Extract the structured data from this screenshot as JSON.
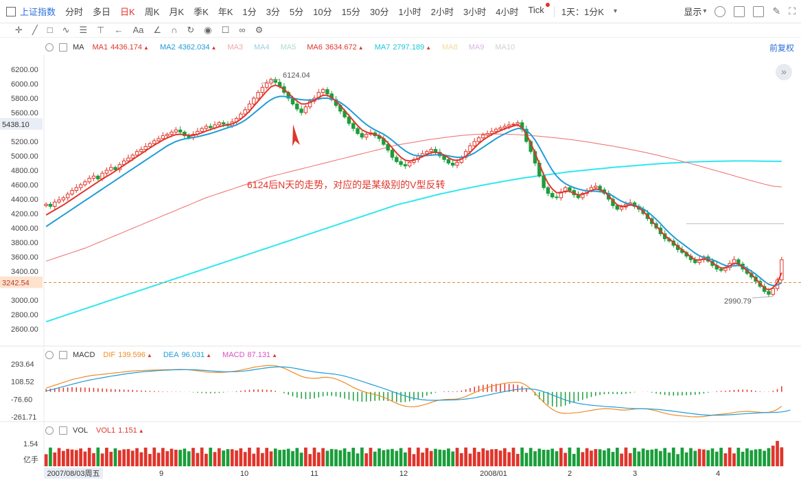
{
  "toolbar": {
    "symbol": "上证指数",
    "timeframes": [
      "分时",
      "多日",
      "日K",
      "周K",
      "月K",
      "季K",
      "年K",
      "1分",
      "3分",
      "5分",
      "10分",
      "15分",
      "30分",
      "1小时",
      "2小时",
      "3小时",
      "4小时",
      "Tick"
    ],
    "active_timeframe": "日K",
    "period_select": "1天：1分K",
    "display_label": "显示"
  },
  "ma_bar": {
    "name": "MA",
    "items": [
      {
        "label": "MA1",
        "value": "4436.174",
        "color": "#e0352b",
        "on": true
      },
      {
        "label": "MA2",
        "value": "4362.034",
        "color": "#1f9bd7",
        "on": true
      },
      {
        "label": "MA3",
        "value": "",
        "color": "#f4a6a6",
        "on": false
      },
      {
        "label": "MA4",
        "value": "",
        "color": "#9ccfe6",
        "on": false
      },
      {
        "label": "MA5",
        "value": "",
        "color": "#a9dcc6",
        "on": false
      },
      {
        "label": "MA6",
        "value": "3634.672",
        "color": "#e0352b",
        "on": true
      },
      {
        "label": "MA7",
        "value": "2797.189",
        "color": "#18c8d8",
        "on": true
      },
      {
        "label": "MA8",
        "value": "",
        "color": "#f2d9a0",
        "on": false
      },
      {
        "label": "MA9",
        "value": "",
        "color": "#d9b6e2",
        "on": false
      },
      {
        "label": "MA10",
        "value": "",
        "color": "#cfcfcf",
        "on": false
      }
    ],
    "adjust": "前复权"
  },
  "macd_bar": {
    "name": "MACD",
    "items": [
      {
        "label": "DIF",
        "value": "139.596",
        "color": "#f08a24"
      },
      {
        "label": "DEA",
        "value": "96.031",
        "color": "#1f9bd7"
      },
      {
        "label": "MACD",
        "value": "87.131",
        "color": "#d94fc0"
      }
    ]
  },
  "vol_bar": {
    "name": "VOL",
    "items": [
      {
        "label": "VOL1",
        "value": "1.151",
        "color": "#e0352b"
      }
    ]
  },
  "chart_data": {
    "type": "candlestick",
    "price_axis": {
      "ticks": [
        6200,
        6000,
        5800,
        5600,
        5200,
        5000,
        4800,
        4600,
        4400,
        4200,
        4000,
        3800,
        3600,
        3400,
        3000,
        2800,
        2600
      ],
      "labels": [
        "6200.00",
        "6000.00",
        "5800.00",
        "5600.00",
        "5200.00",
        "5000.00",
        "4800.00",
        "4600.00",
        "4400.00",
        "4200.00",
        "4000.00",
        "3800.00",
        "3600.00",
        "3400.00",
        "3000.00",
        "2800.00",
        "2600.00"
      ],
      "ylim": [
        2400,
        6400
      ]
    },
    "highlight_price": "5438.10",
    "current_price": "3242.54",
    "high_marker": "6124.04",
    "low_marker": "2990.79",
    "annotation": "6124后N天的走势，对应的是某级别的V型反转",
    "macd_axis": {
      "labels": [
        "293.64",
        "108.52",
        "-76.60",
        "-261.71"
      ],
      "values": [
        293.64,
        108.52,
        -76.6,
        -261.71
      ]
    },
    "vol_axis": {
      "labels": [
        "1.54",
        "亿手"
      ]
    },
    "time_axis": {
      "labels": [
        "2007/08/03周五",
        "9",
        "10",
        "11",
        "12",
        "2008/01",
        "2",
        "3",
        "4"
      ]
    },
    "close": [
      4330,
      4300,
      4360,
      4390,
      4420,
      4470,
      4520,
      4560,
      4600,
      4640,
      4690,
      4720,
      4680,
      4760,
      4800,
      4840,
      4810,
      4880,
      4930,
      4970,
      5010,
      5060,
      5090,
      5130,
      5170,
      5210,
      5240,
      5280,
      5300,
      5330,
      5360,
      5330,
      5280,
      5250,
      5300,
      5340,
      5380,
      5410,
      5390,
      5430,
      5460,
      5440,
      5420,
      5470,
      5520,
      5580,
      5640,
      5720,
      5800,
      5880,
      5950,
      6010,
      6060,
      6020,
      5960,
      5880,
      5800,
      5720,
      5650,
      5600,
      5680,
      5760,
      5800,
      5880,
      5920,
      5860,
      5780,
      5700,
      5620,
      5540,
      5450,
      5380,
      5310,
      5260,
      5300,
      5320,
      5280,
      5240,
      5160,
      5080,
      4980,
      4920,
      4880,
      4860,
      4910,
      4950,
      5000,
      5030,
      5060,
      5090,
      5050,
      5000,
      4950,
      4900,
      4870,
      4910,
      4980,
      5060,
      5140,
      5200,
      5250,
      5290,
      5310,
      5340,
      5370,
      5390,
      5410,
      5430,
      5440,
      5460,
      5370,
      5200,
      5060,
      4900,
      4720,
      4560,
      4480,
      4430,
      4420,
      4500,
      4560,
      4520,
      4460,
      4420,
      4480,
      4520,
      4560,
      4580,
      4530,
      4480,
      4400,
      4310,
      4260,
      4290,
      4330,
      4350,
      4300,
      4260,
      4200,
      4130,
      4060,
      4000,
      3920,
      3850,
      3820,
      3760,
      3700,
      3660,
      3610,
      3560,
      3520,
      3560,
      3600,
      3540,
      3480,
      3430,
      3410,
      3450,
      3510,
      3560,
      3500,
      3430,
      3370,
      3320,
      3260,
      3190,
      3120,
      3080,
      3160,
      3280,
      3560
    ],
    "ma1": [
      4180,
      4215,
      4250,
      4285,
      4320,
      4360,
      4400,
      4440,
      4480,
      4520,
      4560,
      4600,
      4640,
      4680,
      4715,
      4750,
      4790,
      4830,
      4870,
      4910,
      4950,
      4990,
      5030,
      5070,
      5110,
      5150,
      5185,
      5220,
      5250,
      5275,
      5295,
      5300,
      5295,
      5285,
      5285,
      5300,
      5320,
      5345,
      5365,
      5385,
      5405,
      5420,
      5430,
      5445,
      5470,
      5510,
      5560,
      5620,
      5690,
      5760,
      5830,
      5900,
      5960,
      5980,
      5960,
      5920,
      5870,
      5810,
      5760,
      5720,
      5720,
      5740,
      5770,
      5810,
      5840,
      5840,
      5810,
      5760,
      5700,
      5630,
      5560,
      5490,
      5420,
      5360,
      5330,
      5310,
      5300,
      5280,
      5240,
      5180,
      5110,
      5040,
      4980,
      4940,
      4930,
      4940,
      4965,
      4990,
      5020,
      5045,
      5050,
      5040,
      5010,
      4975,
      4945,
      4935,
      4955,
      4995,
      5050,
      5110,
      5170,
      5220,
      5260,
      5295,
      5325,
      5350,
      5375,
      5395,
      5415,
      5430,
      5390,
      5300,
      5180,
      5040,
      4890,
      4740,
      4620,
      4540,
      4490,
      4490,
      4510,
      4510,
      4480,
      4460,
      4465,
      4490,
      4520,
      4540,
      4530,
      4500,
      4450,
      4380,
      4320,
      4300,
      4305,
      4320,
      4310,
      4280,
      4230,
      4170,
      4100,
      4030,
      3960,
      3895,
      3850,
      3800,
      3745,
      3700,
      3650,
      3600,
      3560,
      3555,
      3570,
      3560,
      3520,
      3475,
      3445,
      3445,
      3475,
      3510,
      3500,
      3460,
      3410,
      3360,
      3300,
      3230,
      3170,
      3140,
      3170,
      3240,
      3380
    ],
    "ma2": [
      4020,
      4060,
      4100,
      4140,
      4180,
      4220,
      4260,
      4300,
      4340,
      4380,
      4420,
      4460,
      4500,
      4540,
      4580,
      4620,
      4660,
      4700,
      4740,
      4780,
      4820,
      4860,
      4900,
      4940,
      4980,
      5020,
      5060,
      5100,
      5140,
      5170,
      5200,
      5220,
      5235,
      5245,
      5255,
      5265,
      5280,
      5295,
      5310,
      5330,
      5350,
      5370,
      5390,
      5410,
      5430,
      5460,
      5495,
      5540,
      5590,
      5640,
      5690,
      5740,
      5780,
      5810,
      5825,
      5825,
      5815,
      5800,
      5790,
      5780,
      5775,
      5775,
      5780,
      5790,
      5800,
      5800,
      5790,
      5770,
      5740,
      5700,
      5650,
      5595,
      5540,
      5485,
      5435,
      5395,
      5360,
      5330,
      5300,
      5260,
      5215,
      5165,
      5115,
      5070,
      5035,
      5010,
      5000,
      5000,
      5005,
      5010,
      5015,
      5015,
      5010,
      5000,
      4990,
      4980,
      4980,
      4990,
      5010,
      5040,
      5080,
      5120,
      5160,
      5200,
      5240,
      5275,
      5305,
      5335,
      5360,
      5380,
      5380,
      5355,
      5300,
      5220,
      5120,
      5010,
      4900,
      4800,
      4720,
      4660,
      4615,
      4585,
      4560,
      4540,
      4525,
      4515,
      4510,
      4510,
      4505,
      4495,
      4475,
      4445,
      4405,
      4370,
      4345,
      4330,
      4315,
      4295,
      4265,
      4225,
      4175,
      4120,
      4060,
      3995,
      3935,
      3880,
      3830,
      3785,
      3740,
      3695,
      3650,
      3615,
      3590,
      3575,
      3560,
      3535,
      3505,
      3480,
      3470,
      3475,
      3480,
      3470,
      3440,
      3400,
      3360,
      3310,
      3260,
      3220,
      3200,
      3210,
      3240
    ],
    "ma6": [
      3540,
      3560,
      3580,
      3600,
      3620,
      3640,
      3660,
      3680,
      3700,
      3720,
      3745,
      3770,
      3795,
      3820,
      3845,
      3870,
      3895,
      3920,
      3945,
      3970,
      3995,
      4020,
      4045,
      4070,
      4095,
      4120,
      4145,
      4170,
      4195,
      4220,
      4245,
      4270,
      4295,
      4320,
      4345,
      4370,
      4395,
      4420,
      4440,
      4460,
      4480,
      4500,
      4520,
      4540,
      4560,
      4580,
      4600,
      4620,
      4640,
      4660,
      4680,
      4700,
      4715,
      4730,
      4745,
      4760,
      4775,
      4790,
      4805,
      4820,
      4835,
      4850,
      4865,
      4880,
      4895,
      4910,
      4925,
      4940,
      4955,
      4970,
      4985,
      5000,
      5015,
      5030,
      5045,
      5060,
      5075,
      5090,
      5105,
      5120,
      5135,
      5150,
      5160,
      5170,
      5180,
      5190,
      5200,
      5210,
      5220,
      5230,
      5238,
      5246,
      5254,
      5262,
      5270,
      5276,
      5282,
      5288,
      5293,
      5297,
      5300,
      5302,
      5303,
      5304,
      5304,
      5303,
      5302,
      5300,
      5297,
      5294,
      5290,
      5286,
      5282,
      5277,
      5272,
      5267,
      5261,
      5255,
      5249,
      5242,
      5235,
      5228,
      5220,
      5212,
      5203,
      5194,
      5185,
      5175,
      5165,
      5155,
      5145,
      5135,
      5124,
      5113,
      5102,
      5090,
      5078,
      5066,
      5053,
      5040,
      5027,
      5013,
      4999,
      4985,
      4970,
      4955,
      4940,
      4924,
      4908,
      4892,
      4876,
      4860,
      4843,
      4826,
      4809,
      4792,
      4775,
      4758,
      4741,
      4724,
      4707,
      4690,
      4673,
      4656,
      4640,
      4624,
      4608,
      4594,
      4580,
      4575,
      4570
    ],
    "ma7": [
      2700,
      2720,
      2740,
      2760,
      2780,
      2800,
      2820,
      2840,
      2860,
      2880,
      2900,
      2920,
      2940,
      2960,
      2980,
      3000,
      3020,
      3040,
      3060,
      3080,
      3100,
      3120,
      3140,
      3160,
      3180,
      3200,
      3220,
      3240,
      3260,
      3280,
      3300,
      3320,
      3340,
      3360,
      3380,
      3400,
      3420,
      3440,
      3460,
      3480,
      3500,
      3520,
      3540,
      3560,
      3580,
      3600,
      3620,
      3640,
      3660,
      3680,
      3700,
      3720,
      3740,
      3760,
      3780,
      3800,
      3820,
      3840,
      3860,
      3880,
      3900,
      3920,
      3940,
      3960,
      3980,
      4000,
      4020,
      4040,
      4060,
      4080,
      4100,
      4120,
      4140,
      4160,
      4180,
      4200,
      4220,
      4240,
      4260,
      4280,
      4300,
      4320,
      4335,
      4350,
      4365,
      4380,
      4395,
      4410,
      4425,
      4440,
      4455,
      4470,
      4483,
      4496,
      4509,
      4522,
      4535,
      4547,
      4559,
      4571,
      4583,
      4595,
      4606,
      4617,
      4628,
      4639,
      4650,
      4660,
      4670,
      4680,
      4690,
      4700,
      4708,
      4716,
      4724,
      4732,
      4740,
      4748,
      4756,
      4764,
      4772,
      4780,
      4786,
      4792,
      4798,
      4804,
      4810,
      4816,
      4822,
      4828,
      4834,
      4840,
      4845,
      4850,
      4855,
      4860,
      4865,
      4870,
      4875,
      4880,
      4884,
      4888,
      4892,
      4896,
      4900,
      4903,
      4906,
      4909,
      4912,
      4915,
      4917,
      4919,
      4921,
      4923,
      4925,
      4926,
      4927,
      4928,
      4929,
      4930,
      4930,
      4930,
      4930,
      4930,
      4929,
      4928,
      4927,
      4926,
      4925,
      4925,
      4925
    ],
    "dif": [
      40,
      55,
      70,
      85,
      100,
      115,
      130,
      140,
      150,
      160,
      168,
      175,
      180,
      185,
      190,
      195,
      200,
      205,
      210,
      215,
      220,
      222,
      224,
      226,
      228,
      230,
      231,
      232,
      233,
      234,
      235,
      236,
      235,
      232,
      228,
      222,
      216,
      210,
      206,
      204,
      204,
      206,
      210,
      214,
      220,
      228,
      238,
      248,
      258,
      266,
      272,
      276,
      278,
      274,
      264,
      248,
      228,
      206,
      184,
      164,
      150,
      144,
      142,
      146,
      152,
      154,
      148,
      136,
      118,
      96,
      72,
      48,
      26,
      8,
      -6,
      -18,
      -28,
      -40,
      -56,
      -76,
      -98,
      -120,
      -138,
      -150,
      -156,
      -156,
      -150,
      -140,
      -126,
      -110,
      -96,
      -86,
      -80,
      -78,
      -78,
      -74,
      -64,
      -48,
      -28,
      -8,
      12,
      30,
      46,
      60,
      72,
      82,
      90,
      96,
      100,
      102,
      92,
      68,
      32,
      -12,
      -60,
      -108,
      -150,
      -184,
      -208,
      -222,
      -226,
      -224,
      -220,
      -216,
      -210,
      -202,
      -194,
      -186,
      -180,
      -176,
      -176,
      -180,
      -186,
      -190,
      -190,
      -186,
      -180,
      -176,
      -176,
      -180,
      -188,
      -200,
      -212,
      -224,
      -234,
      -242,
      -248,
      -252,
      -256,
      -260,
      -262,
      -262,
      -258,
      -252,
      -244,
      -238,
      -234,
      -230,
      -224,
      -216,
      -210,
      -206,
      -204,
      -206,
      -210,
      -214,
      -216,
      -214,
      -204,
      -184,
      -150
    ],
    "dea": [
      10,
      20,
      32,
      44,
      56,
      68,
      80,
      92,
      104,
      114,
      124,
      133,
      141,
      149,
      157,
      165,
      172,
      179,
      186,
      193,
      199,
      204,
      209,
      213,
      217,
      221,
      224,
      227,
      229,
      231,
      232,
      233,
      234,
      234,
      233,
      231,
      228,
      225,
      221,
      218,
      215,
      213,
      212,
      212,
      213,
      216,
      220,
      226,
      233,
      240,
      247,
      253,
      258,
      262,
      263,
      262,
      258,
      252,
      244,
      235,
      226,
      218,
      210,
      204,
      199,
      195,
      190,
      184,
      176,
      166,
      154,
      140,
      126,
      111,
      96,
      81,
      66,
      51,
      36,
      20,
      4,
      -12,
      -28,
      -43,
      -56,
      -67,
      -76,
      -82,
      -86,
      -88,
      -88,
      -87,
      -86,
      -85,
      -84,
      -82,
      -79,
      -75,
      -69,
      -62,
      -53,
      -44,
      -34,
      -24,
      -14,
      -5,
      4,
      12,
      20,
      27,
      32,
      34,
      32,
      26,
      16,
      2,
      -14,
      -32,
      -50,
      -68,
      -84,
      -98,
      -110,
      -120,
      -128,
      -134,
      -140,
      -144,
      -148,
      -152,
      -155,
      -158,
      -162,
      -166,
      -170,
      -173,
      -175,
      -176,
      -177,
      -178,
      -180,
      -183,
      -187,
      -192,
      -197,
      -203,
      -209,
      -215,
      -221,
      -227,
      -232,
      -237,
      -241,
      -244,
      -245,
      -245,
      -244,
      -242,
      -240,
      -237,
      -234,
      -231,
      -228,
      -225,
      -222,
      -220,
      -218,
      -217,
      -216,
      -214,
      -210,
      -203,
      -190
    ],
    "volume_max": 1.54
  }
}
